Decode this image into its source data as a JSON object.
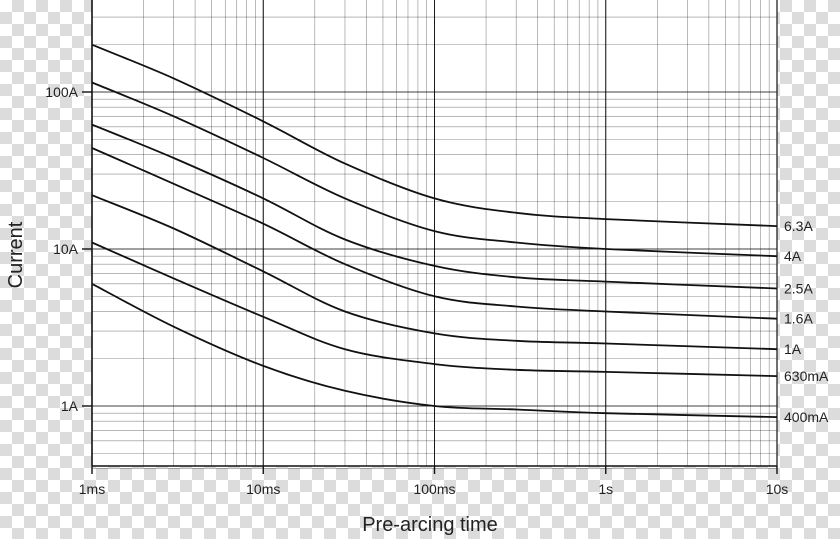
{
  "chart_data": {
    "type": "line",
    "title": "",
    "xlabel": "Pre-arcing time",
    "ylabel": "Current",
    "x_scale": "log",
    "y_scale": "log",
    "xlim": [
      "1ms",
      "10s"
    ],
    "ylim": [
      "0.4A",
      "300A"
    ],
    "grid": true,
    "x_ticks": [
      "1ms",
      "10ms",
      "100ms",
      "1s",
      "10s"
    ],
    "y_ticks": [
      "1A",
      "10A",
      "100A"
    ],
    "x_unit": "ms",
    "y_unit": "A",
    "series": [
      {
        "name": "6.3A",
        "color": "#111111",
        "x": [
          1,
          3,
          10,
          30,
          100,
          300,
          1000,
          10000
        ],
        "y": [
          200,
          122,
          65,
          35,
          21,
          17,
          15.5,
          14
        ]
      },
      {
        "name": "4A",
        "color": "#111111",
        "x": [
          1,
          3,
          10,
          30,
          100,
          300,
          1000,
          10000
        ],
        "y": [
          115,
          70,
          38,
          21,
          13,
          11,
          10,
          9
        ]
      },
      {
        "name": "2.5A",
        "color": "#111111",
        "x": [
          1,
          3,
          10,
          30,
          100,
          300,
          1000,
          10000
        ],
        "y": [
          62,
          38,
          21,
          11.5,
          7.8,
          6.6,
          6.2,
          5.6
        ]
      },
      {
        "name": "1.6A",
        "color": "#111111",
        "x": [
          1,
          3,
          10,
          30,
          100,
          300,
          1000,
          10000
        ],
        "y": [
          44,
          26,
          14.5,
          8,
          5,
          4.3,
          4,
          3.6
        ]
      },
      {
        "name": "1A",
        "color": "#111111",
        "x": [
          1,
          3,
          10,
          30,
          100,
          300,
          1000,
          10000
        ],
        "y": [
          22,
          13.5,
          7.2,
          4,
          2.9,
          2.6,
          2.5,
          2.3
        ]
      },
      {
        "name": "630mA",
        "color": "#111111",
        "x": [
          1,
          3,
          10,
          30,
          100,
          300,
          1000,
          10000
        ],
        "y": [
          11,
          6.5,
          3.7,
          2.3,
          1.85,
          1.7,
          1.65,
          1.55
        ]
      },
      {
        "name": "400mA",
        "color": "#111111",
        "x": [
          1,
          3,
          10,
          30,
          100,
          300,
          1000,
          10000
        ],
        "y": [
          6,
          3.2,
          1.8,
          1.25,
          1.0,
          0.95,
          0.9,
          0.85
        ]
      }
    ]
  }
}
